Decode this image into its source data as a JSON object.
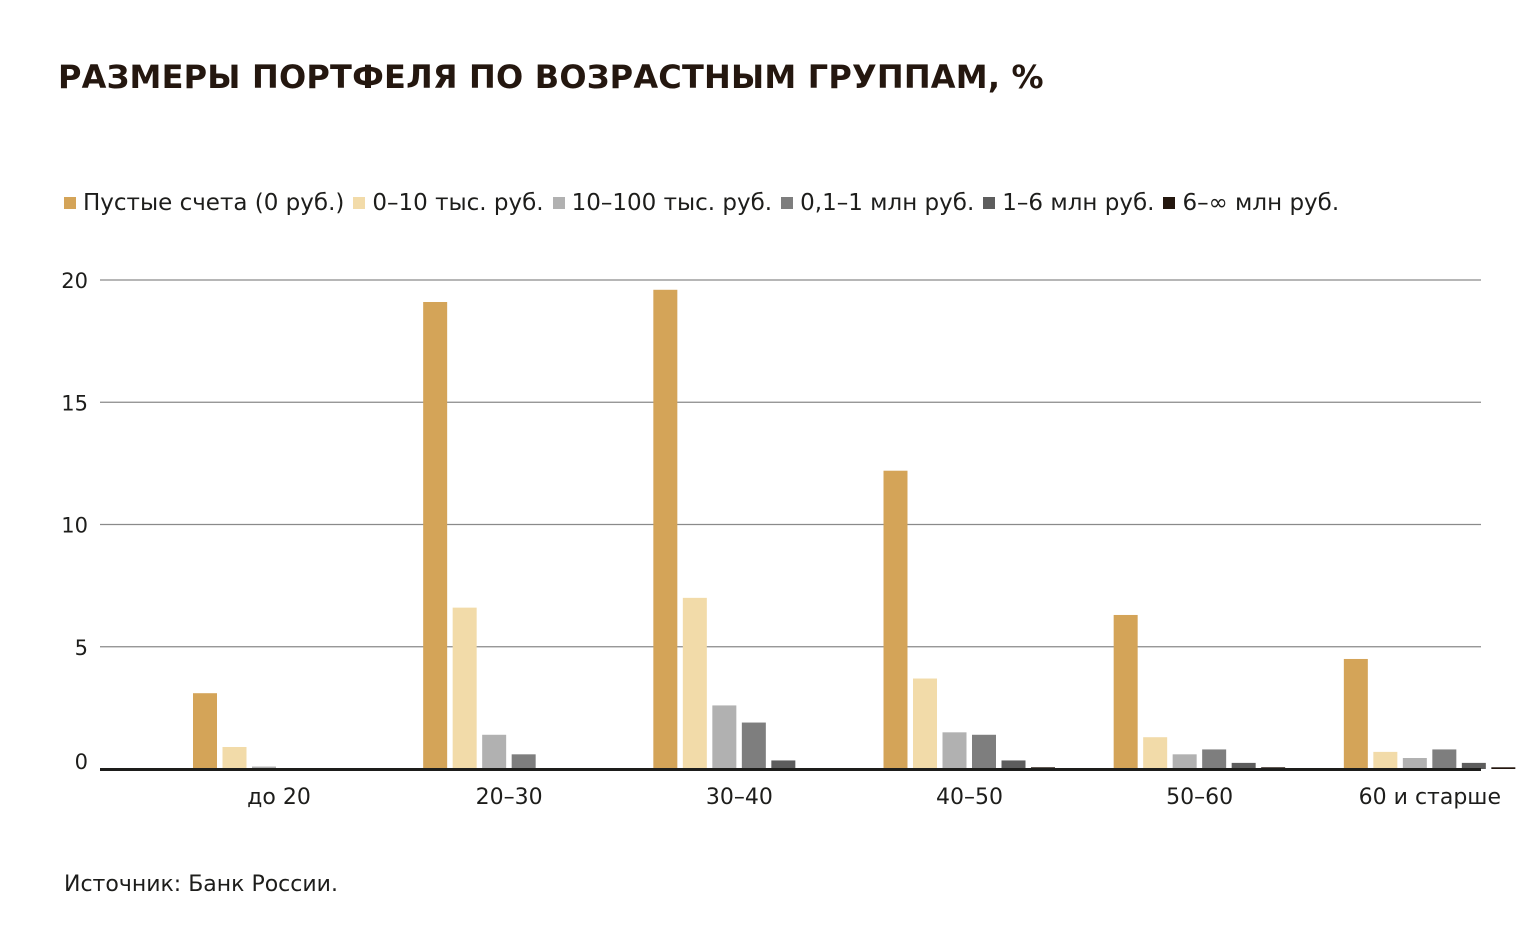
{
  "title": "РАЗМЕРЫ ПОРТФЕЛЯ ПО ВОЗРАСТНЫМ ГРУППАМ, %",
  "source": "Источник: Банк России.",
  "chart_data": {
    "type": "bar",
    "title": "РАЗМЕРЫ ПОРТФЕЛЯ ПО ВОЗРАСТНЫМ ГРУППАМ, %",
    "xlabel": "",
    "ylabel": "",
    "ylim": [
      0,
      20
    ],
    "yticks": [
      "0",
      "5",
      "10",
      "15",
      "20"
    ],
    "grid": true,
    "legend_position": "top-left",
    "categories": [
      "до 20",
      "20–30",
      "30–40",
      "40–50",
      "50–60",
      "60 и старше"
    ],
    "series": [
      {
        "name": "Пустые счета (0 руб.)",
        "color": "#d4a458",
        "values": [
          3.1,
          19.1,
          19.6,
          12.2,
          6.3,
          4.5
        ]
      },
      {
        "name": "0–10 тыс. руб.",
        "color": "#f2dba9",
        "values": [
          0.9,
          6.6,
          7.0,
          3.7,
          1.3,
          0.7
        ]
      },
      {
        "name": "10–100 тыс. руб.",
        "color": "#b1b1b1",
        "values": [
          0.1,
          1.4,
          2.6,
          1.5,
          0.6,
          0.45
        ]
      },
      {
        "name": "0,1–1 млн руб.",
        "color": "#7e7e7e",
        "values": [
          0.0,
          0.6,
          1.9,
          1.4,
          0.8,
          0.8
        ]
      },
      {
        "name": "1–6 млн руб.",
        "color": "#5d5d5d",
        "values": [
          0.0,
          0.0,
          0.35,
          0.35,
          0.25,
          0.25
        ]
      },
      {
        "name": "6–∞ млн руб.",
        "color": "#24170f",
        "values": [
          0.0,
          0.0,
          0.0,
          0.07,
          0.07,
          0.07
        ]
      }
    ]
  }
}
